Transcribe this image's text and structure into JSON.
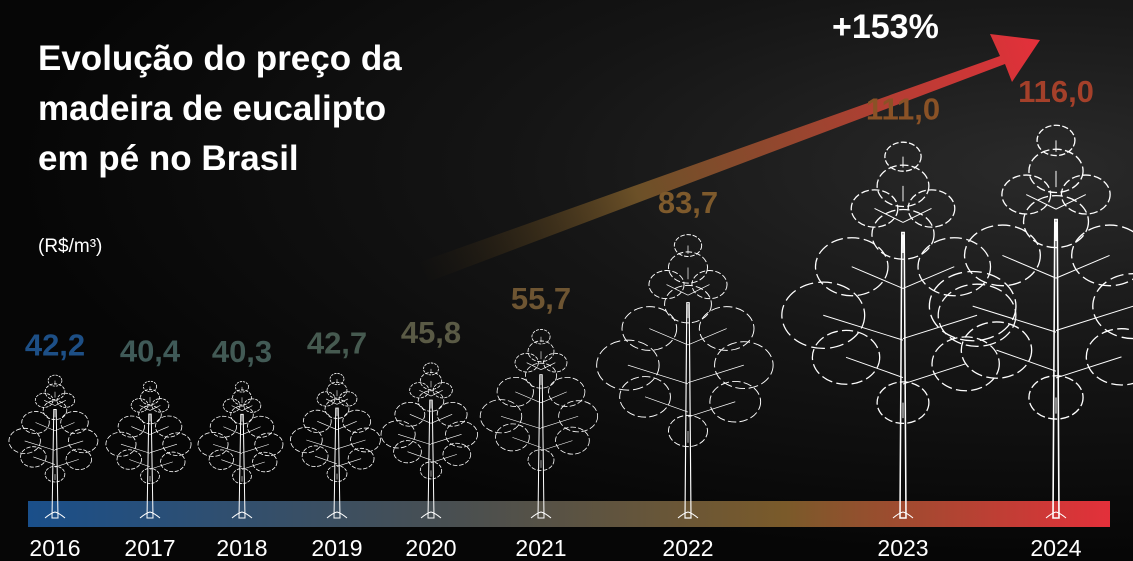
{
  "title": "Evolução do preço da madeira de eucalipto em pé no Brasil",
  "unit": "(R$/m³)",
  "growth_label": "+153%",
  "colors": {
    "start": "#1a4f8a",
    "mid": "#7a5a2a",
    "end": "#e3303a",
    "text": "#ffffff"
  },
  "chart_data": {
    "type": "bar",
    "title": "Evolução do preço da madeira de eucalipto em pé no Brasil",
    "ylabel": "(R$/m³)",
    "xlabel": "",
    "categories": [
      "2016",
      "2017",
      "2018",
      "2019",
      "2020",
      "2021",
      "2022",
      "2023",
      "2024"
    ],
    "values": [
      42.2,
      40.4,
      40.3,
      42.7,
      45.8,
      55.7,
      83.7,
      111.0,
      116.0
    ],
    "value_labels": [
      "42,2",
      "40,4",
      "40,3",
      "42,7",
      "45,8",
      "55,7",
      "83,7",
      "111,0",
      "116,0"
    ],
    "label_colors": [
      "#1d4f86",
      "#3f5a58",
      "#425a55",
      "#465a50",
      "#5a5a45",
      "#6e5532",
      "#7e5a2c",
      "#8a5226",
      "#a4402a"
    ],
    "marks": "tree-icon",
    "annotation": "+153%",
    "grid": false,
    "legend": "none"
  }
}
